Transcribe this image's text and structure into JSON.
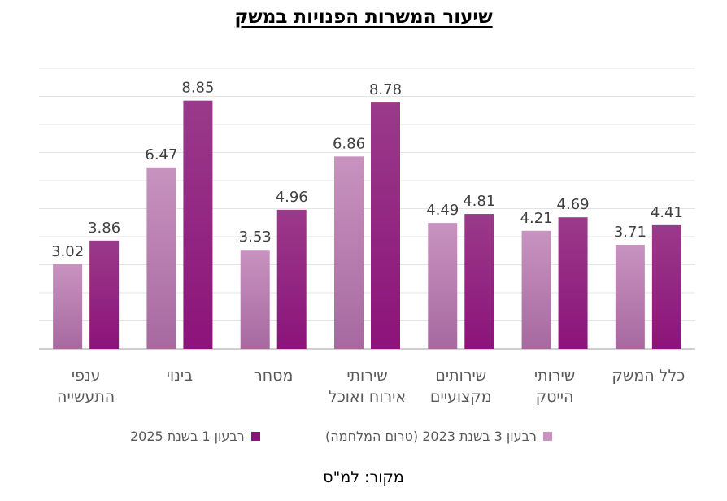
{
  "chart_data": {
    "type": "bar",
    "title": "שיעור המשרות הפנויות במשק",
    "categories": [
      [
        "ענפי",
        "התעשייה"
      ],
      [
        "בינוי"
      ],
      [
        "מסחר"
      ],
      [
        "שירותי",
        "אירוח ואוכל"
      ],
      [
        "שירותים",
        "מקצועיים"
      ],
      [
        "שירותי",
        "הייטק"
      ],
      [
        "כלל המשק"
      ]
    ],
    "series": [
      {
        "name": "רבעון 3 בשנת 2023 (טרום המלחמה)",
        "color": "#c27fb9",
        "values": [
          3.02,
          6.47,
          3.53,
          6.86,
          4.49,
          4.21,
          3.71
        ]
      },
      {
        "name": "רבעון 1 בשנת 2025",
        "color": "#a0197f",
        "values": [
          3.86,
          8.85,
          4.96,
          8.78,
          4.81,
          4.69,
          4.41
        ]
      }
    ],
    "ylim": [
      0,
      10
    ],
    "grid": true,
    "legend_position": "bottom"
  },
  "source": "מקור: למ\"ס"
}
